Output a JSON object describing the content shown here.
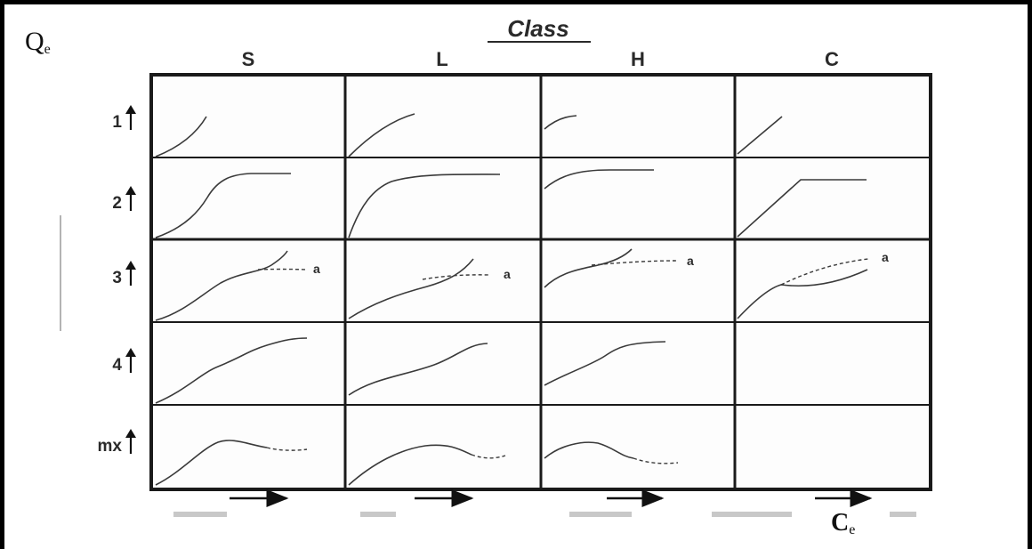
{
  "axis": {
    "y_symbol": "Q",
    "y_subscript": "e",
    "x_symbol": "C",
    "x_subscript": "e"
  },
  "header": {
    "title": "Class"
  },
  "columns": [
    "S",
    "L",
    "H",
    "C"
  ],
  "rows": [
    "1",
    "2",
    "3",
    "4",
    "mx"
  ],
  "dashed_label": "a"
}
